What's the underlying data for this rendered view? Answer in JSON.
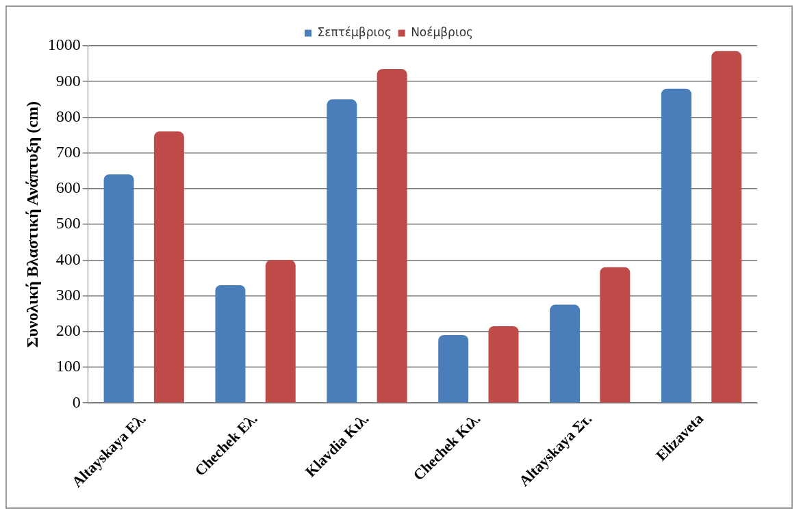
{
  "chart_data": {
    "type": "bar",
    "ylabel": "Συνολική Βλαστική Ανάπτυξη (cm)",
    "categories": [
      "Altayskaya Ελ.",
      "Chechek Ελ.",
      "Klavdia Κιλ.",
      "Chechek Κιλ.",
      "Altayskaya Στ.",
      "Elizaveta"
    ],
    "series": [
      {
        "name": "Σεπτέμβριος",
        "color": "#4a7ebb",
        "values": [
          640,
          330,
          850,
          190,
          275,
          880
        ]
      },
      {
        "name": "Νοέμβριος",
        "color": "#be4b48",
        "values": [
          760,
          400,
          935,
          215,
          380,
          985
        ]
      }
    ],
    "ylim": [
      0,
      1000
    ],
    "yticks": [
      0,
      100,
      200,
      300,
      400,
      500,
      600,
      700,
      800,
      900,
      1000
    ],
    "grid": "y",
    "legend": "top"
  }
}
